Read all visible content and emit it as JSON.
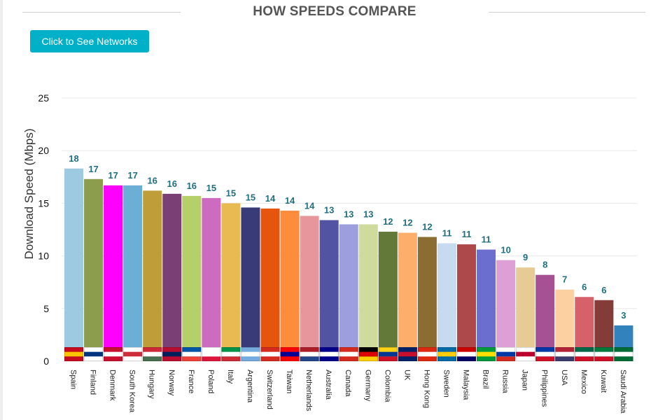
{
  "header": {
    "title": "HOW SPEEDS COMPARE",
    "button_label": "Click to See Networks"
  },
  "chart_data": {
    "type": "bar",
    "title": "HOW SPEEDS COMPARE",
    "xlabel": "",
    "ylabel": "Download Speed (Mbps)",
    "ylim": [
      0,
      25
    ],
    "yticks": [
      0,
      5,
      10,
      15,
      20,
      25
    ],
    "grid": true,
    "categories": [
      "Spain",
      "Finland",
      "Denmark",
      "South Korea",
      "Hungary",
      "Norway",
      "France",
      "Poland",
      "Italy",
      "Argentina",
      "Switzerland",
      "Taiwan",
      "Netherlands",
      "Australia",
      "Canada",
      "Germany",
      "Colombia",
      "UK",
      "Hong Kong",
      "Sweden",
      "Malaysia",
      "Brazil",
      "Russia",
      "Japan",
      "Philippines",
      "USA",
      "Mexico",
      "Kuwait",
      "Saudi Arabia"
    ],
    "values": [
      18.3,
      17.3,
      16.7,
      16.7,
      16.2,
      15.9,
      15.7,
      15.5,
      15.0,
      14.6,
      14.5,
      14.3,
      13.8,
      13.4,
      13.0,
      13.0,
      12.3,
      12.2,
      11.8,
      11.2,
      11.1,
      10.6,
      9.6,
      8.9,
      8.2,
      6.8,
      6.1,
      5.8,
      3.4
    ],
    "data_labels": [
      "18",
      "17",
      "17",
      "17",
      "16",
      "16",
      "16",
      "15",
      "15",
      "15",
      "14",
      "14",
      "14",
      "13",
      "13",
      "13",
      "12",
      "12",
      "12",
      "11",
      "11",
      "11",
      "10",
      "9",
      "8",
      "7",
      "6",
      "6",
      "3"
    ],
    "colors": [
      "#9ecae1",
      "#8c9e4e",
      "#ff00ff",
      "#6baed6",
      "#bf9e3a",
      "#7a3f74",
      "#b5cf6b",
      "#cc6bbf",
      "#e7ba52",
      "#393b79",
      "#e6550d",
      "#fd8d3c",
      "#e7969c",
      "#5254a3",
      "#9c9ede",
      "#cedb9c",
      "#637939",
      "#fdae6b",
      "#8c6d31",
      "#c6dbef",
      "#ad494a",
      "#6b6ecf",
      "#de9ed6",
      "#e7cb94",
      "#a55194",
      "#fdd0a2",
      "#d6616b",
      "#843c39",
      "#3182bd"
    ],
    "flag_colors": [
      [
        "#c60b1e",
        "#ffc400",
        "#c60b1e"
      ],
      [
        "#ffffff",
        "#003580",
        "#ffffff"
      ],
      [
        "#c8102e",
        "#ffffff",
        "#c8102e"
      ],
      [
        "#ffffff",
        "#cd2e3a",
        "#ffffff"
      ],
      [
        "#ce2939",
        "#ffffff",
        "#477050"
      ],
      [
        "#ba0c2f",
        "#00205b",
        "#ba0c2f"
      ],
      [
        "#0055a4",
        "#ffffff",
        "#ef4135"
      ],
      [
        "#ffffff",
        "#ffffff",
        "#dc143c"
      ],
      [
        "#009246",
        "#ffffff",
        "#ce2b37"
      ],
      [
        "#74acdf",
        "#ffffff",
        "#74acdf"
      ],
      [
        "#d52b1e",
        "#ffffff",
        "#d52b1e"
      ],
      [
        "#fe0000",
        "#000095",
        "#fe0000"
      ],
      [
        "#ae1c28",
        "#ffffff",
        "#21468b"
      ],
      [
        "#00008b",
        "#ffffff",
        "#00008b"
      ],
      [
        "#d52b1e",
        "#ffffff",
        "#d52b1e"
      ],
      [
        "#000000",
        "#dd0000",
        "#ffce00"
      ],
      [
        "#fcd116",
        "#003893",
        "#ce1126"
      ],
      [
        "#012169",
        "#c8102e",
        "#012169"
      ],
      [
        "#de2910",
        "#ffffff",
        "#de2910"
      ],
      [
        "#006aa7",
        "#fecc00",
        "#006aa7"
      ],
      [
        "#cc0001",
        "#ffffff",
        "#010066"
      ],
      [
        "#009c3b",
        "#ffdf00",
        "#009c3b"
      ],
      [
        "#ffffff",
        "#0039a6",
        "#d52b1e"
      ],
      [
        "#ffffff",
        "#bc002d",
        "#ffffff"
      ],
      [
        "#0038a8",
        "#ffffff",
        "#ce1126"
      ],
      [
        "#b22234",
        "#ffffff",
        "#3c3b6e"
      ],
      [
        "#006847",
        "#ffffff",
        "#ce1126"
      ],
      [
        "#007a3d",
        "#ffffff",
        "#ce1126"
      ],
      [
        "#006c35",
        "#ffffff",
        "#006c35"
      ]
    ],
    "label_color": "#1f6f7f",
    "grid_color": "#e8e8e8"
  }
}
